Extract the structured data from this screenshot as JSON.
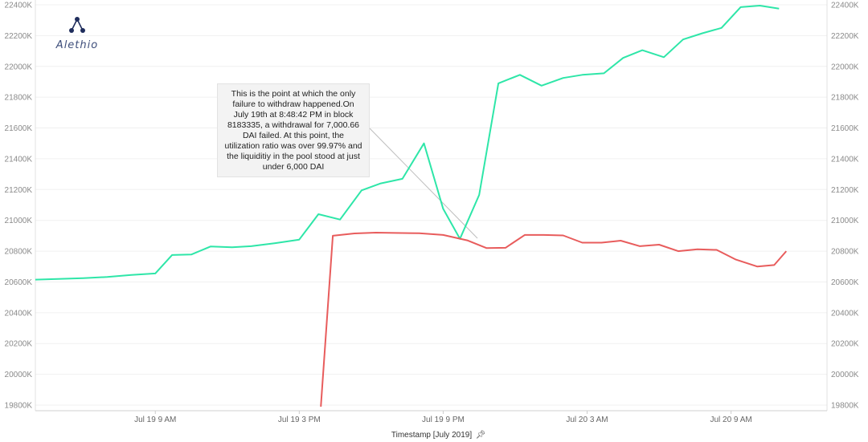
{
  "logo": {
    "text": "Alethio",
    "icon": "alethio-logo-icon"
  },
  "annotation": {
    "text": "This is the point at which the only failure to withdraw happened.On July 19th at 8:48:42 PM in block 8183335, a withdrawal for 7,000.66 DAI failed. At this point, the utilization ratio was over 99.97% and the liquiditiy in the pool stood at just under 6,000 DAI"
  },
  "chart_data": {
    "type": "line",
    "xlabel": "Timestamp [July 2019]",
    "xlabel_icon": "pin-icon",
    "x_ticks": [
      "Jul 19 9 AM",
      "Jul 19 3 PM",
      "Jul 19 9 PM",
      "Jul 20 3 AM",
      "Jul 20 9 AM"
    ],
    "y_ticks": [
      "19800K",
      "20000K",
      "20200K",
      "20400K",
      "20600K",
      "20800K",
      "21000K",
      "21200K",
      "21400K",
      "21600K",
      "21800K",
      "22000K",
      "22200K",
      "22400K"
    ],
    "ylim": [
      19800,
      22400
    ],
    "yunit": "K",
    "xlim_hours": [
      0,
      33
    ],
    "x_tick_hours": [
      5,
      11,
      17,
      23,
      29
    ],
    "grid": "horizontal",
    "series": [
      {
        "color": "#2ee6a8",
        "points": [
          [
            0,
            20615
          ],
          [
            2,
            20625
          ],
          [
            3,
            20632
          ],
          [
            4,
            20645
          ],
          [
            5,
            20655
          ],
          [
            5.7,
            20775
          ],
          [
            6.5,
            20778
          ],
          [
            7.3,
            20830
          ],
          [
            8.2,
            20825
          ],
          [
            9,
            20832
          ],
          [
            10,
            20852
          ],
          [
            11,
            20875
          ],
          [
            11.8,
            21040
          ],
          [
            12.7,
            21005
          ],
          [
            13.6,
            21195
          ],
          [
            14.4,
            21240
          ],
          [
            15.3,
            21270
          ],
          [
            16.2,
            21500
          ],
          [
            17,
            21075
          ],
          [
            17.7,
            20880
          ],
          [
            18.5,
            21165
          ],
          [
            19.3,
            21890
          ],
          [
            20.2,
            21945
          ],
          [
            21.1,
            21875
          ],
          [
            22,
            21925
          ],
          [
            22.8,
            21945
          ],
          [
            23.7,
            21955
          ],
          [
            24.5,
            22055
          ],
          [
            25.3,
            22105
          ],
          [
            26.2,
            22060
          ],
          [
            27,
            22175
          ],
          [
            27.8,
            22215
          ],
          [
            28.6,
            22250
          ],
          [
            29.4,
            22385
          ],
          [
            30.2,
            22395
          ],
          [
            31,
            22375
          ]
        ]
      },
      {
        "color": "#e85c5c",
        "points": [
          [
            11.9,
            19790
          ],
          [
            12.4,
            20900
          ],
          [
            13.3,
            20915
          ],
          [
            14.2,
            20920
          ],
          [
            15,
            20918
          ],
          [
            16,
            20916
          ],
          [
            17,
            20905
          ],
          [
            18,
            20870
          ],
          [
            18.8,
            20820
          ],
          [
            19.6,
            20822
          ],
          [
            20.4,
            20905
          ],
          [
            21.2,
            20905
          ],
          [
            22,
            20902
          ],
          [
            22.8,
            20855
          ],
          [
            23.6,
            20855
          ],
          [
            24.4,
            20868
          ],
          [
            25.2,
            20832
          ],
          [
            26,
            20842
          ],
          [
            26.8,
            20800
          ],
          [
            27.6,
            20812
          ],
          [
            28.4,
            20808
          ],
          [
            29.2,
            20745
          ],
          [
            30.1,
            20700
          ],
          [
            30.8,
            20710
          ],
          [
            31.3,
            20800
          ]
        ]
      }
    ]
  }
}
